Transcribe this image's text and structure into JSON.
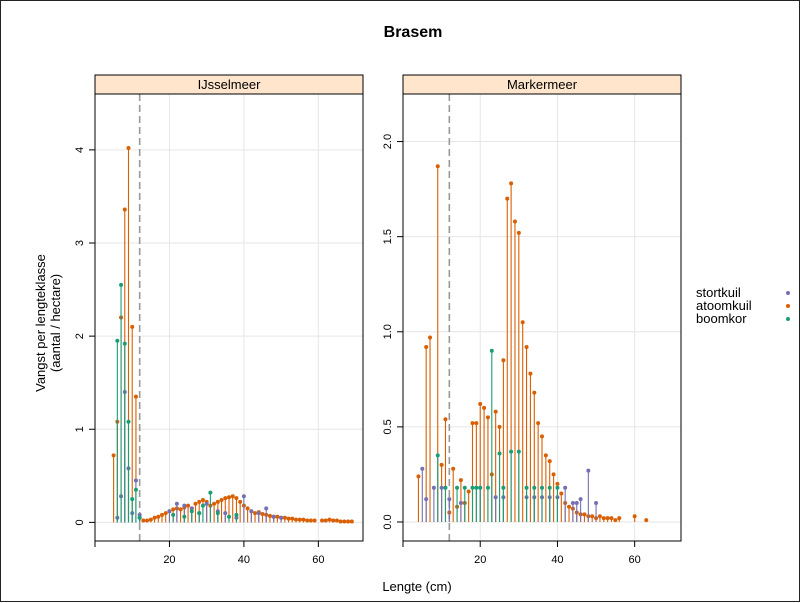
{
  "chart_data": {
    "type": "lollipop",
    "title": "Brasem",
    "xlabel": "Lengte (cm)",
    "ylabel_lines": [
      "Vangst per lengteklasse",
      "(aantal / hectare)"
    ],
    "grid": true,
    "legend_position": "right",
    "series_colors": {
      "stortkuil": "#7570B3",
      "atoomkuil": "#D95F02",
      "boomkor": "#1B9E77"
    },
    "legend": [
      "stortkuil",
      "atoomkuil",
      "boomkor"
    ],
    "reference_line_x": 12,
    "panels": [
      {
        "name": "IJsselmeer",
        "xlim": [
          0,
          72
        ],
        "ylim": [
          -0.2,
          4.6
        ],
        "xticks": [
          20,
          40,
          60
        ],
        "yticks": [
          0,
          1,
          2,
          3,
          4
        ],
        "series": [
          {
            "name": "atoomkuil",
            "points": [
              [
                5,
                0.72
              ],
              [
                6,
                1.08
              ],
              [
                7,
                2.2
              ],
              [
                8,
                3.36
              ],
              [
                9,
                4.02
              ],
              [
                10,
                2.1
              ],
              [
                11,
                1.35
              ],
              [
                12,
                0.05
              ],
              [
                13,
                0.02
              ],
              [
                14,
                0.02
              ],
              [
                15,
                0.03
              ],
              [
                16,
                0.05
              ],
              [
                17,
                0.06
              ],
              [
                18,
                0.08
              ],
              [
                19,
                0.1
              ],
              [
                20,
                0.12
              ],
              [
                21,
                0.14
              ],
              [
                22,
                0.15
              ],
              [
                23,
                0.14
              ],
              [
                24,
                0.16
              ],
              [
                25,
                0.18
              ],
              [
                26,
                0.15
              ],
              [
                27,
                0.2
              ],
              [
                28,
                0.22
              ],
              [
                29,
                0.24
              ],
              [
                30,
                0.22
              ],
              [
                31,
                0.18
              ],
              [
                32,
                0.2
              ],
              [
                33,
                0.22
              ],
              [
                34,
                0.24
              ],
              [
                35,
                0.26
              ],
              [
                36,
                0.27
              ],
              [
                37,
                0.28
              ],
              [
                38,
                0.26
              ],
              [
                39,
                0.22
              ],
              [
                40,
                0.18
              ],
              [
                41,
                0.15
              ],
              [
                42,
                0.12
              ],
              [
                43,
                0.1
              ],
              [
                44,
                0.11
              ],
              [
                45,
                0.09
              ],
              [
                46,
                0.08
              ],
              [
                47,
                0.07
              ],
              [
                48,
                0.06
              ],
              [
                49,
                0.06
              ],
              [
                50,
                0.05
              ],
              [
                51,
                0.05
              ],
              [
                52,
                0.04
              ],
              [
                53,
                0.04
              ],
              [
                54,
                0.03
              ],
              [
                55,
                0.03
              ],
              [
                56,
                0.03
              ],
              [
                57,
                0.02
              ],
              [
                58,
                0.02
              ],
              [
                59,
                0.02
              ],
              [
                61,
                0.02
              ],
              [
                62,
                0.02
              ],
              [
                63,
                0.03
              ],
              [
                64,
                0.02
              ],
              [
                65,
                0.02
              ],
              [
                66,
                0.01
              ],
              [
                67,
                0.01
              ],
              [
                68,
                0.01
              ],
              [
                69,
                0.01
              ]
            ]
          },
          {
            "name": "stortkuil",
            "points": [
              [
                6,
                0.05
              ],
              [
                7,
                0.28
              ],
              [
                8,
                1.4
              ],
              [
                9,
                0.58
              ],
              [
                10,
                0.1
              ],
              [
                11,
                0.45
              ],
              [
                12,
                0.08
              ],
              [
                20,
                0.12
              ],
              [
                22,
                0.2
              ],
              [
                24,
                0.18
              ],
              [
                26,
                0.15
              ],
              [
                28,
                0.1
              ],
              [
                30,
                0.2
              ],
              [
                33,
                0.12
              ],
              [
                35,
                0.1
              ],
              [
                38,
                0.05
              ],
              [
                40,
                0.28
              ],
              [
                42,
                0.12
              ],
              [
                44,
                0.1
              ],
              [
                46,
                0.15
              ],
              [
                48,
                0.06
              ],
              [
                50,
                0.05
              ]
            ]
          },
          {
            "name": "boomkor",
            "points": [
              [
                6,
                1.95
              ],
              [
                7,
                2.55
              ],
              [
                8,
                1.92
              ],
              [
                9,
                1.08
              ],
              [
                10,
                0.25
              ],
              [
                11,
                0.35
              ],
              [
                12,
                0.05
              ],
              [
                21,
                0.08
              ],
              [
                24,
                0.06
              ],
              [
                26,
                0.12
              ],
              [
                28,
                0.1
              ],
              [
                29,
                0.18
              ],
              [
                31,
                0.32
              ],
              [
                33,
                0.1
              ],
              [
                36,
                0.06
              ],
              [
                38,
                0.08
              ]
            ]
          }
        ]
      },
      {
        "name": "Markermeer",
        "xlim": [
          0,
          72
        ],
        "ylim": [
          -0.1,
          2.25
        ],
        "xticks": [
          20,
          40,
          60
        ],
        "yticks": [
          0.0,
          0.5,
          1.0,
          1.5,
          2.0
        ],
        "ytick_labels": [
          "0.0",
          "0.5",
          "1.0",
          "1.5",
          "2.0"
        ],
        "series": [
          {
            "name": "atoomkuil",
            "points": [
              [
                4,
                0.24
              ],
              [
                6,
                0.92
              ],
              [
                7,
                0.97
              ],
              [
                9,
                1.87
              ],
              [
                10,
                0.3
              ],
              [
                11,
                0.54
              ],
              [
                12,
                0.05
              ],
              [
                13,
                0.28
              ],
              [
                14,
                0.08
              ],
              [
                15,
                0.22
              ],
              [
                16,
                0.1
              ],
              [
                17,
                0.16
              ],
              [
                18,
                0.52
              ],
              [
                19,
                0.52
              ],
              [
                20,
                0.62
              ],
              [
                21,
                0.6
              ],
              [
                22,
                0.55
              ],
              [
                23,
                0.25
              ],
              [
                24,
                0.58
              ],
              [
                25,
                0.5
              ],
              [
                26,
                0.85
              ],
              [
                27,
                1.7
              ],
              [
                28,
                1.78
              ],
              [
                29,
                1.58
              ],
              [
                30,
                1.52
              ],
              [
                31,
                1.05
              ],
              [
                32,
                0.92
              ],
              [
                33,
                0.78
              ],
              [
                34,
                0.68
              ],
              [
                35,
                0.52
              ],
              [
                36,
                0.45
              ],
              [
                37,
                0.35
              ],
              [
                38,
                0.32
              ],
              [
                39,
                0.25
              ],
              [
                40,
                0.2
              ],
              [
                41,
                0.15
              ],
              [
                42,
                0.1
              ],
              [
                43,
                0.08
              ],
              [
                44,
                0.07
              ],
              [
                45,
                0.05
              ],
              [
                46,
                0.04
              ],
              [
                47,
                0.04
              ],
              [
                48,
                0.03
              ],
              [
                49,
                0.03
              ],
              [
                50,
                0.02
              ],
              [
                51,
                0.03
              ],
              [
                52,
                0.02
              ],
              [
                53,
                0.02
              ],
              [
                54,
                0.02
              ],
              [
                55,
                0.01
              ],
              [
                56,
                0.02
              ],
              [
                60,
                0.03
              ],
              [
                63,
                0.01
              ]
            ]
          },
          {
            "name": "stortkuil",
            "points": [
              [
                5,
                0.28
              ],
              [
                6,
                0.12
              ],
              [
                8,
                0.18
              ],
              [
                10,
                0.18
              ],
              [
                12,
                0.12
              ],
              [
                15,
                0.1
              ],
              [
                20,
                0.18
              ],
              [
                24,
                0.13
              ],
              [
                26,
                0.13
              ],
              [
                32,
                0.13
              ],
              [
                34,
                0.13
              ],
              [
                36,
                0.13
              ],
              [
                38,
                0.13
              ],
              [
                40,
                0.13
              ],
              [
                42,
                0.18
              ],
              [
                44,
                0.1
              ],
              [
                45,
                0.1
              ],
              [
                46,
                0.12
              ],
              [
                48,
                0.27
              ],
              [
                50,
                0.1
              ]
            ]
          },
          {
            "name": "boomkor",
            "points": [
              [
                9,
                0.35
              ],
              [
                11,
                0.18
              ],
              [
                14,
                0.18
              ],
              [
                16,
                0.18
              ],
              [
                18,
                0.18
              ],
              [
                19,
                0.18
              ],
              [
                20,
                0.18
              ],
              [
                22,
                0.18
              ],
              [
                23,
                0.9
              ],
              [
                25,
                0.36
              ],
              [
                26,
                0.18
              ],
              [
                28,
                0.37
              ],
              [
                30,
                0.37
              ],
              [
                32,
                0.18
              ],
              [
                34,
                0.18
              ],
              [
                36,
                0.18
              ],
              [
                38,
                0.18
              ],
              [
                40,
                0.18
              ]
            ]
          }
        ]
      }
    ]
  }
}
